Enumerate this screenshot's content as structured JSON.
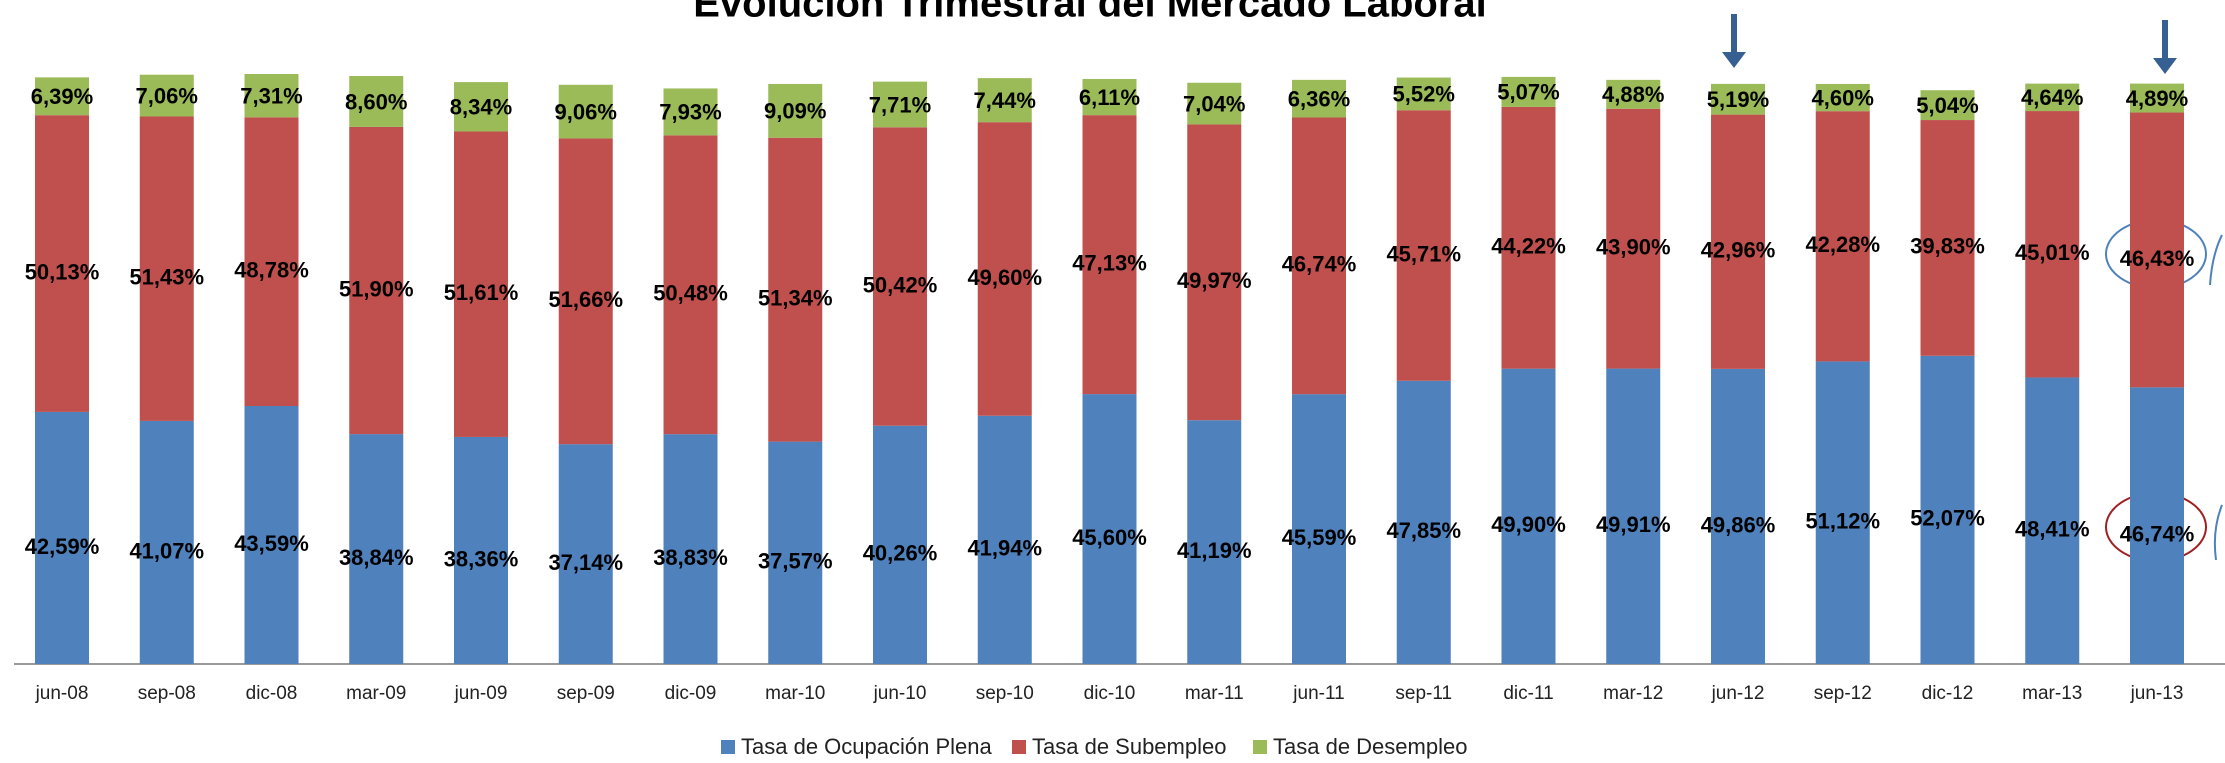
{
  "chart_data": {
    "type": "stacked_bar",
    "title": "Evolución Trimestral del Mercado Laboral",
    "categories": [
      "jun-08",
      "sep-08",
      "dic-08",
      "mar-09",
      "jun-09",
      "sep-09",
      "dic-09",
      "mar-10",
      "jun-10",
      "sep-10",
      "dic-10",
      "mar-11",
      "jun-11",
      "sep-11",
      "dic-11",
      "mar-12",
      "jun-12",
      "sep-12",
      "dic-12",
      "mar-13",
      "jun-13"
    ],
    "series": [
      {
        "name": "Tasa de Ocupación Plena",
        "color": "#4f81bd",
        "values": [
          42.59,
          41.07,
          43.59,
          38.84,
          38.36,
          37.14,
          38.83,
          37.57,
          40.26,
          41.94,
          45.6,
          41.19,
          45.59,
          47.85,
          49.9,
          49.91,
          49.86,
          51.12,
          52.07,
          48.41,
          46.74
        ],
        "value_labels": [
          "42,59%",
          "41,07%",
          "43,59%",
          "38,84%",
          "38,36%",
          "37,14%",
          "38,83%",
          "37,57%",
          "40,26%",
          "41,94%",
          "45,60%",
          "41,19%",
          "45,59%",
          "47,85%",
          "49,90%",
          "49,91%",
          "49,86%",
          "51,12%",
          "52,07%",
          "48,41%",
          "46,74%"
        ]
      },
      {
        "name": "Tasa de Subempleo",
        "color": "#c0504d",
        "values": [
          50.13,
          51.43,
          48.78,
          51.9,
          51.61,
          51.66,
          50.48,
          51.34,
          50.42,
          49.6,
          47.13,
          49.97,
          46.74,
          45.71,
          44.22,
          43.9,
          42.96,
          42.28,
          39.83,
          45.01,
          46.43
        ],
        "value_labels": [
          "50,13%",
          "51,43%",
          "48,78%",
          "51,90%",
          "51,61%",
          "51,66%",
          "50,48%",
          "51,34%",
          "50,42%",
          "49,60%",
          "47,13%",
          "49,97%",
          "46,74%",
          "45,71%",
          "44,22%",
          "43,90%",
          "42,96%",
          "42,28%",
          "39,83%",
          "45,01%",
          "46,43%"
        ]
      },
      {
        "name": "Tasa de Desempleo",
        "color": "#9bbb59",
        "values": [
          6.39,
          7.06,
          7.31,
          8.6,
          8.34,
          9.06,
          7.93,
          9.09,
          7.71,
          7.44,
          6.11,
          7.04,
          6.36,
          5.52,
          5.07,
          4.88,
          5.19,
          4.6,
          5.04,
          4.64,
          4.89
        ],
        "value_labels": [
          "6,39%",
          "7,06%",
          "7,31%",
          "8,60%",
          "8,34%",
          "9,06%",
          "7,93%",
          "9,09%",
          "7,71%",
          "7,44%",
          "6,11%",
          "7,04%",
          "6,36%",
          "5,52%",
          "5,07%",
          "4,88%",
          "5,19%",
          "4,60%",
          "5,04%",
          "4,64%",
          "4,89%"
        ]
      }
    ]
  }
}
